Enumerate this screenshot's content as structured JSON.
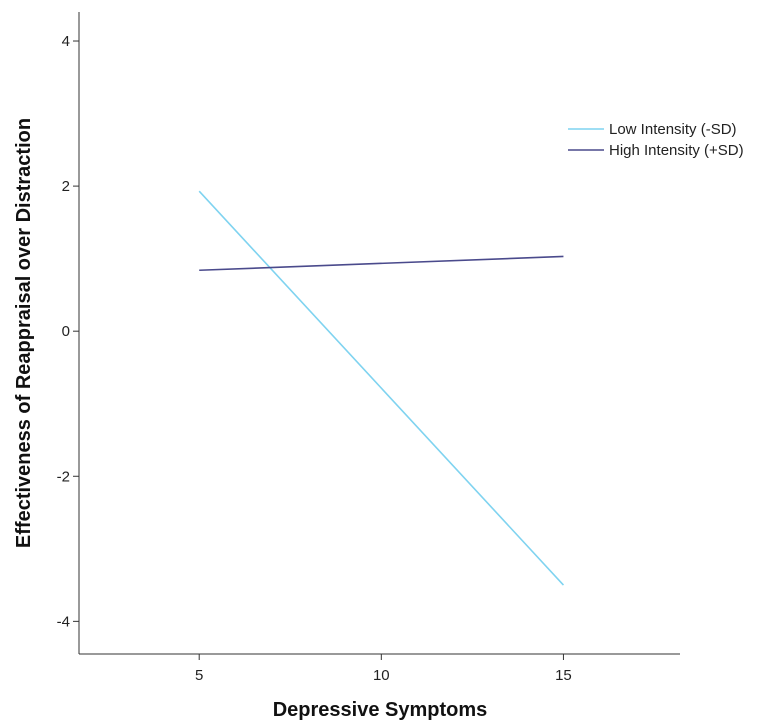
{
  "chart_data": {
    "type": "line",
    "title": "",
    "xlabel": "Depressive Symptoms",
    "ylabel": "Effectiveness of Reappraisal over Distraction",
    "xlim": [
      1.7,
      18.2
    ],
    "ylim": [
      -4.45,
      4.4
    ],
    "xticks": [
      5,
      10,
      15
    ],
    "yticks": [
      -4,
      -2,
      0,
      2,
      4
    ],
    "grid": false,
    "legend_position": "right",
    "series": [
      {
        "name": "Low Intensity (-SD)",
        "color": "#7fd3f0",
        "x": [
          5,
          15
        ],
        "y": [
          1.93,
          -3.5
        ]
      },
      {
        "name": "High Intensity (+SD)",
        "color": "#4a4a8c",
        "x": [
          5,
          15
        ],
        "y": [
          0.84,
          1.03
        ]
      }
    ]
  }
}
